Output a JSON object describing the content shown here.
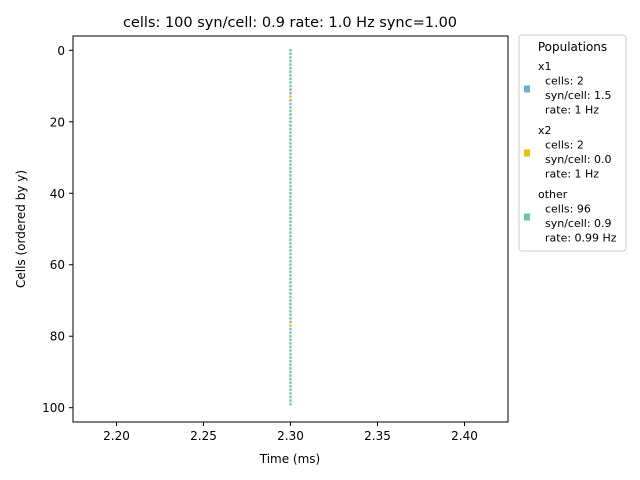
{
  "chart_data": {
    "type": "raster",
    "title": "cells: 100   syn/cell: 0.9   rate: 1.0 Hz    sync=1.00",
    "xlabel": "Time (ms)",
    "ylabel": "Cells (ordered by y)",
    "xlim": [
      2.175,
      2.425
    ],
    "ylim": [
      104,
      -4
    ],
    "y_inverted": true,
    "xticks": [
      "2.20",
      "2.25",
      "2.30",
      "2.35",
      "2.40"
    ],
    "xtick_values": [
      2.2,
      2.25,
      2.3,
      2.35,
      2.4
    ],
    "yticks": [
      "0",
      "20",
      "40",
      "60",
      "80",
      "100"
    ],
    "ytick_values": [
      0,
      20,
      40,
      60,
      80,
      100
    ],
    "spike_time": 2.3,
    "series": [
      {
        "name": "x1",
        "color": "#6baed6",
        "cells": [
          11,
          12
        ]
      },
      {
        "name": "x2",
        "color": "#e6c200",
        "cells": [
          13,
          77
        ]
      },
      {
        "name": "other",
        "color": "#66cc99",
        "cell_range": [
          0,
          99
        ],
        "exclude": [
          11,
          12,
          13,
          77
        ]
      }
    ],
    "legend": {
      "title": "Populations",
      "placement": "outside-right",
      "entries": [
        {
          "name": "x1",
          "color": "#6baed6",
          "lines": [
            "  cells: 2",
            "  syn/cell: 1.5",
            "  rate: 1 Hz"
          ]
        },
        {
          "name": "x2",
          "color": "#e6c200",
          "lines": [
            "  cells: 2",
            "  syn/cell: 0.0",
            "  rate: 1 Hz"
          ]
        },
        {
          "name": "other",
          "color": "#66cc99",
          "lines": [
            "  cells: 96",
            "  syn/cell: 0.9",
            "  rate: 0.99 Hz"
          ]
        }
      ]
    }
  }
}
